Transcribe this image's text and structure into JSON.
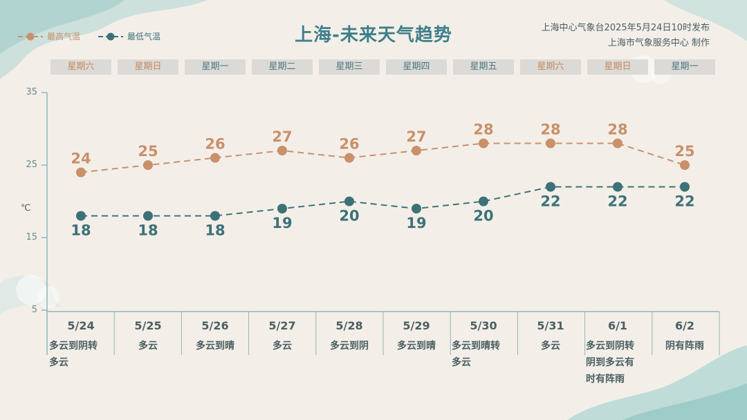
{
  "header": {
    "title": "上海-未来天气趋势",
    "issuer_line1": "上海中心气象台2025年5月24日10时发布",
    "issuer_line2": "上海市气象服务中心 制作"
  },
  "legend": {
    "high_label": "最高气温",
    "low_label": "最低气温"
  },
  "weekdays": [
    {
      "label": "星期六",
      "weekend": true
    },
    {
      "label": "星期日",
      "weekend": true
    },
    {
      "label": "星期一",
      "weekend": false
    },
    {
      "label": "星期二",
      "weekend": false
    },
    {
      "label": "星期三",
      "weekend": false
    },
    {
      "label": "星期四",
      "weekend": false
    },
    {
      "label": "星期五",
      "weekend": false
    },
    {
      "label": "星期六",
      "weekend": true
    },
    {
      "label": "星期日",
      "weekend": true
    },
    {
      "label": "星期一",
      "weekend": false
    }
  ],
  "weather": [
    "多云到阴转\n多云",
    "多云",
    "多云到晴",
    "多云",
    "多云到阴",
    "多云到晴",
    "多云到晴转\n多云",
    "多云",
    "多云到阴转\n阴到多云有\n时有阵雨",
    "阴有阵雨"
  ],
  "colors": {
    "high": "#c9906a",
    "low": "#3d7178",
    "axis": "#8fb5ba"
  },
  "chart_data": {
    "type": "line",
    "categories": [
      "5/24",
      "5/25",
      "5/26",
      "5/27",
      "5/28",
      "5/29",
      "5/30",
      "5/31",
      "6/1",
      "6/2"
    ],
    "series": [
      {
        "name": "最高气温",
        "values": [
          24,
          25,
          26,
          27,
          26,
          27,
          28,
          28,
          28,
          25
        ]
      },
      {
        "name": "最低气温",
        "values": [
          18,
          18,
          18,
          19,
          20,
          19,
          20,
          22,
          22,
          22
        ]
      }
    ],
    "y_unit": "℃",
    "ylim": [
      5,
      35
    ],
    "yticks": [
      5,
      15,
      25,
      35
    ],
    "grid": false,
    "legend_position": "top-left"
  }
}
